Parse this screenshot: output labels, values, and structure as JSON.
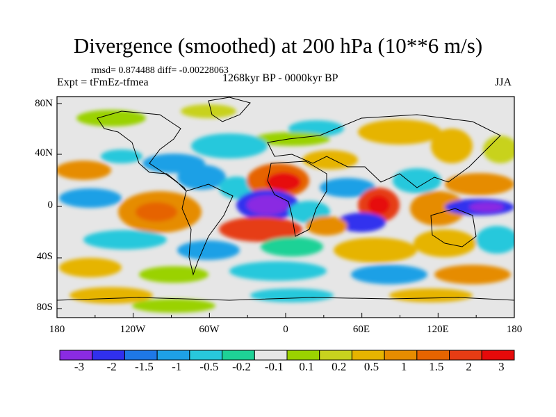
{
  "header": {
    "title": "Divergence (smoothed) at 200 hPa (10**6 m/s)",
    "stats": "rmsd= 0.874488 diff= -0.00228063",
    "experiment": "Expt = tFmEz-tfmea",
    "period": "1268kyr BP - 0000kyr BP",
    "season": "JJA"
  },
  "map": {
    "lat_labels": [
      "80N",
      "40N",
      "0",
      "40S",
      "80S"
    ],
    "lon_labels": [
      "180",
      "120W",
      "60W",
      "0",
      "60E",
      "120E",
      "180"
    ]
  },
  "colorbar": {
    "labels": [
      "-3",
      "-2",
      "-1.5",
      "-1",
      "-0.5",
      "-0.2",
      "-0.1",
      "0.1",
      "0.2",
      "0.5",
      "1",
      "1.5",
      "2",
      "3"
    ],
    "colors": [
      "#8a2be2",
      "#3030ee",
      "#1e78e6",
      "#1ea0e6",
      "#28c8dc",
      "#1ed296",
      "#e6e6e6",
      "#9ad200",
      "#c8d21e",
      "#e6b400",
      "#e68c00",
      "#e66400",
      "#e63c14",
      "#e60a0a"
    ]
  },
  "colors": {
    "neutral": "#e6e6e6",
    "coast": "#000000"
  }
}
